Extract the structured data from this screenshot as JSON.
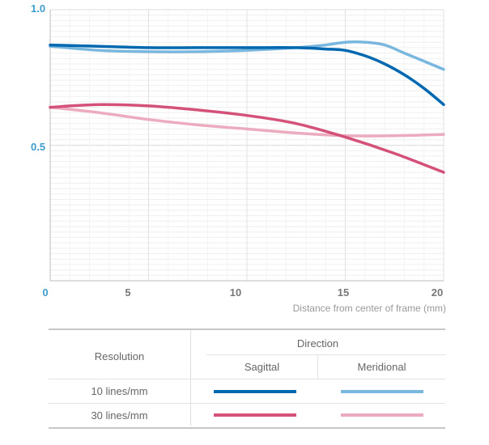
{
  "chart_data": {
    "type": "line",
    "title": "",
    "xlabel": "Distance from center of frame (mm)",
    "ylabel": "",
    "xlim": [
      0,
      20
    ],
    "ylim": [
      0,
      1.0
    ],
    "x_ticks": [
      "0",
      "5",
      "10",
      "15",
      "20"
    ],
    "y_ticks": [
      "0.5",
      "1.0"
    ],
    "grid": true,
    "series": [
      {
        "key": "s10",
        "color": "#0068b0",
        "x": [
          0,
          2.5,
          5,
          7.5,
          10,
          12.5,
          14,
          15,
          16,
          17,
          18,
          19,
          20
        ],
        "y": [
          0.87,
          0.865,
          0.86,
          0.86,
          0.86,
          0.86,
          0.855,
          0.85,
          0.83,
          0.8,
          0.76,
          0.71,
          0.65
        ]
      },
      {
        "key": "m10",
        "color": "#7ab7de",
        "x": [
          0,
          2.5,
          5,
          7.5,
          10,
          12.5,
          14,
          15,
          16,
          17,
          18,
          19,
          20
        ],
        "y": [
          0.865,
          0.85,
          0.845,
          0.845,
          0.85,
          0.86,
          0.87,
          0.88,
          0.88,
          0.87,
          0.84,
          0.81,
          0.78
        ]
      },
      {
        "key": "s30",
        "color": "#d4527a",
        "x": [
          0,
          2.5,
          5,
          7.5,
          10,
          12.5,
          15,
          17.5,
          20
        ],
        "y": [
          0.64,
          0.65,
          0.645,
          0.63,
          0.61,
          0.58,
          0.53,
          0.47,
          0.4
        ]
      },
      {
        "key": "m30",
        "color": "#ecabbf",
        "x": [
          0,
          2.5,
          5,
          7.5,
          10,
          12.5,
          15,
          17.5,
          20
        ],
        "y": [
          0.64,
          0.62,
          0.595,
          0.575,
          0.56,
          0.545,
          0.535,
          0.535,
          0.54
        ]
      }
    ]
  },
  "legend": {
    "resolution_header": "Resolution",
    "direction_header": "Direction",
    "sagittal": "Sagittal",
    "meridional": "Meridional",
    "row1": "10 lines/mm",
    "row2": "30 lines/mm"
  },
  "colors": {
    "sagittal_10": "#0068b0",
    "meridional_10": "#7ab7de",
    "sagittal_30": "#d4527a",
    "meridional_30": "#ecabbf",
    "axis_accent": "#3f9dce"
  }
}
